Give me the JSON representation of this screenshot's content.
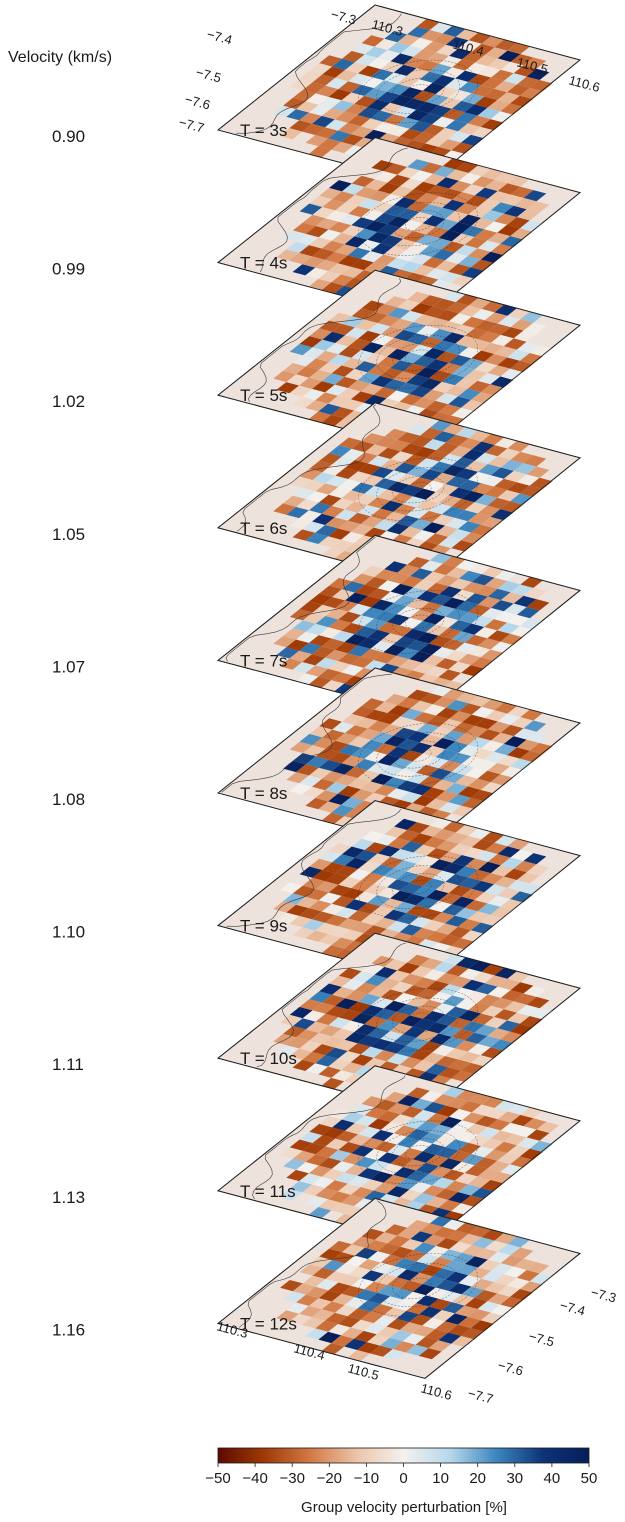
{
  "velocity_title": "Velocity (km/s)",
  "chart_data": {
    "type": "heatmap",
    "layers": [
      {
        "period": "T = 3s",
        "velocity": "0.90"
      },
      {
        "period": "T = 4s",
        "velocity": "0.99"
      },
      {
        "period": "T = 5s",
        "velocity": "1.02"
      },
      {
        "period": "T = 6s",
        "velocity": "1.05"
      },
      {
        "period": "T = 7s",
        "velocity": "1.07"
      },
      {
        "period": "T = 8s",
        "velocity": "1.08"
      },
      {
        "period": "T = 9s",
        "velocity": "1.10"
      },
      {
        "period": "T = 10s",
        "velocity": "1.11"
      },
      {
        "period": "T = 11s",
        "velocity": "1.13"
      },
      {
        "period": "T = 12s",
        "velocity": "1.16"
      }
    ],
    "lon_ticks": [
      "110.3",
      "110.4",
      "110.5",
      "110.6"
    ],
    "lat_ticks": [
      "−7.3",
      "−7.4",
      "−7.5",
      "−7.6",
      "−7.7"
    ],
    "lon_range": [
      110.25,
      110.65
    ],
    "lat_range": [
      -7.75,
      -7.25
    ],
    "colorbar": {
      "label": "Group velocity perturbation [%]",
      "ticks": [
        "−50",
        "−40",
        "−30",
        "−20",
        "−10",
        "0",
        "10",
        "20",
        "30",
        "40",
        "50"
      ],
      "range": [
        -50,
        50
      ],
      "colors": [
        "#5c0a00",
        "#a03a05",
        "#d27a45",
        "#ecc5aa",
        "#f4f1ee",
        "#b6d8ec",
        "#3d86bd",
        "#0d3478",
        "#061d58"
      ]
    }
  }
}
